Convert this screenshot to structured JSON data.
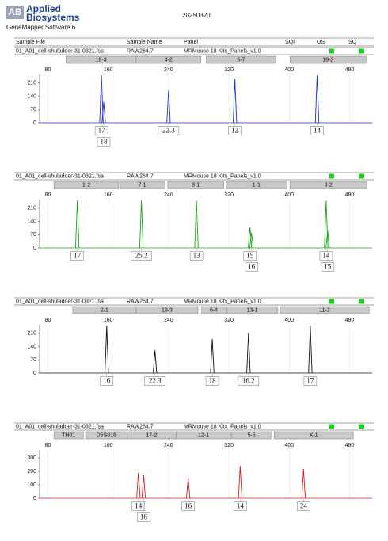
{
  "header": {
    "logo_mark": "AB",
    "logo_line1": "Applied",
    "logo_line2": "Biosystems",
    "software": "GeneMapper Software 6",
    "date": "20250320"
  },
  "columns": [
    "Sample File",
    "Sample Name",
    "Panel",
    "SQI",
    "OS",
    "SQ"
  ],
  "panels": [
    {
      "sample_file": "01_A01_cell-shuladder-31-0321.fsa",
      "sample_name": "RAW264.7",
      "panel": "MRMouse 18 Kits_Panels_v1.0",
      "color": "#1f2fd0",
      "xlim": [
        69,
        510
      ],
      "xticks": [
        80,
        160,
        240,
        320,
        400,
        480
      ],
      "ylim": [
        0,
        255
      ],
      "yticks": [
        0,
        70,
        140,
        210
      ],
      "loci": [
        {
          "name": "18-3",
          "start": 104,
          "end": 197
        },
        {
          "name": "4-2",
          "start": 197,
          "end": 283
        },
        {
          "name": "6-7",
          "start": 290,
          "end": 382
        },
        {
          "name": "19-2",
          "start": 401,
          "end": 502
        }
      ],
      "peaks": [
        {
          "x": 151,
          "height": 250,
          "allele": "17"
        },
        {
          "x": 154,
          "height": 110,
          "allele": "18"
        },
        {
          "x": 240,
          "height": 170,
          "allele": "22.3"
        },
        {
          "x": 328,
          "height": 230,
          "allele": "12"
        },
        {
          "x": 437,
          "height": 250,
          "allele": "14"
        }
      ]
    },
    {
      "sample_file": "01_A01_cell-shuladder-31-0321.fsa",
      "sample_name": "RAW264.7",
      "panel": "MRMouse 18 Kits_Panels_v1.0",
      "color": "#1aa51a",
      "xlim": [
        69,
        510
      ],
      "xticks": [
        80,
        160,
        240,
        320,
        400,
        480
      ],
      "ylim": [
        0,
        255
      ],
      "yticks": [
        0,
        70,
        140,
        210
      ],
      "loci": [
        {
          "name": "1-2",
          "start": 88,
          "end": 174
        },
        {
          "name": "7-1",
          "start": 176,
          "end": 234
        },
        {
          "name": "8-1",
          "start": 239,
          "end": 313
        },
        {
          "name": "1-1",
          "start": 316,
          "end": 397
        },
        {
          "name": "3-2",
          "start": 401,
          "end": 503
        }
      ],
      "peaks": [
        {
          "x": 119,
          "height": 250,
          "allele": "17"
        },
        {
          "x": 204,
          "height": 250,
          "allele": "25.2"
        },
        {
          "x": 277,
          "height": 250,
          "allele": "13"
        },
        {
          "x": 348,
          "height": 110,
          "allele": "15"
        },
        {
          "x": 350,
          "height": 80,
          "allele": "16"
        },
        {
          "x": 449,
          "height": 250,
          "allele": "14"
        },
        {
          "x": 451,
          "height": 90,
          "allele": "15"
        }
      ]
    },
    {
      "sample_file": "01_A01_cell-shuladder-31-0321.fsa",
      "sample_name": "RAW264.7",
      "panel": "MRMouse 18 Kits_Panels_v1.0",
      "color": "#111111",
      "xlim": [
        69,
        510
      ],
      "xticks": [
        80,
        160,
        240,
        320,
        400,
        480
      ],
      "ylim": [
        0,
        255
      ],
      "yticks": [
        0,
        70,
        140,
        210
      ],
      "loci": [
        {
          "name": "2-1",
          "start": 113,
          "end": 197
        },
        {
          "name": "19-3",
          "start": 197,
          "end": 279
        },
        {
          "name": "6-4",
          "start": 284,
          "end": 316
        },
        {
          "name": "13-1",
          "start": 317,
          "end": 385
        },
        {
          "name": "11-2",
          "start": 388,
          "end": 506
        }
      ],
      "peaks": [
        {
          "x": 158,
          "height": 250,
          "allele": "16"
        },
        {
          "x": 222,
          "height": 120,
          "allele": "22.3"
        },
        {
          "x": 298,
          "height": 180,
          "allele": "18"
        },
        {
          "x": 346,
          "height": 210,
          "allele": "16.2"
        },
        {
          "x": 428,
          "height": 250,
          "allele": "17"
        }
      ]
    },
    {
      "sample_file": "01_A01_cell-shuladder-31-0321.fsa",
      "sample_name": "RAW264.7",
      "panel": "MRMouse 18 Kits_Panels_v1.0",
      "color": "#d42020",
      "xlim": [
        69,
        510
      ],
      "xticks": [
        80,
        160,
        240,
        320,
        400,
        480
      ],
      "ylim": [
        0,
        360
      ],
      "yticks": [
        0,
        100,
        200,
        300
      ],
      "loci": [
        {
          "name": "TH01",
          "start": 88,
          "end": 127
        },
        {
          "name": "D5S818",
          "start": 130,
          "end": 185
        },
        {
          "name": "17-2",
          "start": 185,
          "end": 250
        },
        {
          "name": "12-1",
          "start": 250,
          "end": 323
        },
        {
          "name": "5-5",
          "start": 324,
          "end": 376
        },
        {
          "name": "X-1",
          "start": 380,
          "end": 485
        }
      ],
      "peaks": [
        {
          "x": 200,
          "height": 190,
          "allele": "14"
        },
        {
          "x": 207,
          "height": 170,
          "allele": "16"
        },
        {
          "x": 266,
          "height": 150,
          "allele": "16"
        },
        {
          "x": 335,
          "height": 240,
          "allele": "14"
        },
        {
          "x": 419,
          "height": 220,
          "allele": "24"
        }
      ]
    }
  ]
}
